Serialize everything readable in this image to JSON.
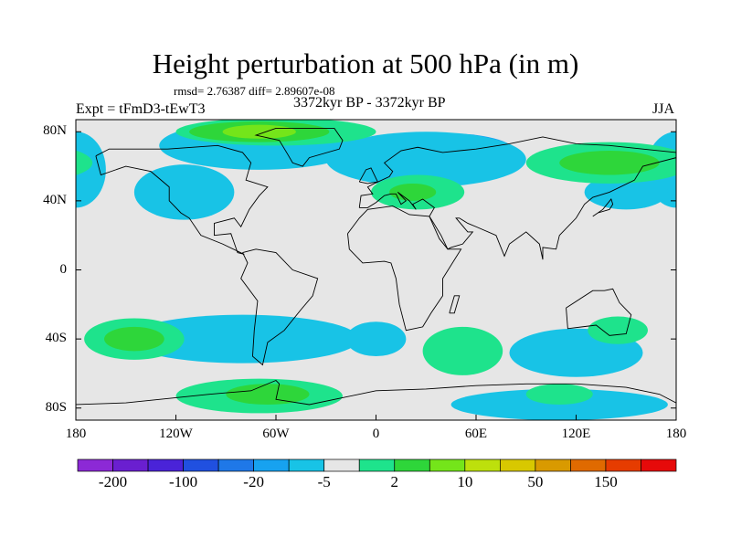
{
  "title": "Height perturbation at 500 hPa (in m)",
  "stats": "rmsd= 2.76387 diff= 2.89607e-08",
  "experiment": "Expt = tFmD3-tEwT3",
  "period": "3372kyr BP - 3372kyr BP",
  "season": "JJA",
  "lat_labels": [
    {
      "label": "80N",
      "lat": 80
    },
    {
      "label": "40N",
      "lat": 40
    },
    {
      "label": "0",
      "lat": 0
    },
    {
      "label": "40S",
      "lat": -40
    },
    {
      "label": "80S",
      "lat": -80
    }
  ],
  "lon_labels": [
    {
      "label": "180",
      "lon": -180
    },
    {
      "label": "120W",
      "lon": -120
    },
    {
      "label": "60W",
      "lon": -60
    },
    {
      "label": "0",
      "lon": 0
    },
    {
      "label": "60E",
      "lon": 60
    },
    {
      "label": "120E",
      "lon": 120
    },
    {
      "label": "180",
      "lon": 180
    }
  ],
  "colorbar": {
    "colors": [
      "#8c29d6",
      "#6a1fd0",
      "#4a23d8",
      "#2050e0",
      "#1f78e8",
      "#17a2f0",
      "#18c3e6",
      "#e6e6e6",
      "#1ee38c",
      "#2ed63a",
      "#74e51a",
      "#bde00c",
      "#d8c800",
      "#d99a00",
      "#e06a00",
      "#e63c00",
      "#e60a0a"
    ],
    "labels": [
      {
        "text": "-200",
        "boundary": 1
      },
      {
        "text": "-100",
        "boundary": 3
      },
      {
        "text": "-20",
        "boundary": 5
      },
      {
        "text": "-5",
        "boundary": 7
      },
      {
        "text": "2",
        "boundary": 9
      },
      {
        "text": "10",
        "boundary": 11
      },
      {
        "text": "50",
        "boundary": 13
      },
      {
        "text": "150",
        "boundary": 15
      }
    ]
  },
  "fields": [
    {
      "color": "#18c3e6",
      "name": "north-atlantic-negative",
      "lon": -70,
      "lat": 72,
      "rlon": 60,
      "rlat": 14
    },
    {
      "color": "#18c3e6",
      "name": "north-pacific-west-negative",
      "lon": -180,
      "lat": 58,
      "rlon": 18,
      "rlat": 22
    },
    {
      "color": "#18c3e6",
      "name": "north-pacific-east-negative",
      "lon": -115,
      "lat": 45,
      "rlon": 30,
      "rlat": 16
    },
    {
      "color": "#17a2f0",
      "name": "arctic-russia-negative",
      "lon": 45,
      "lat": 67,
      "rlon": 40,
      "rlat": 12
    },
    {
      "color": "#18c3e6",
      "name": "arctic-russia-halo",
      "lon": 30,
      "lat": 64,
      "rlon": 60,
      "rlat": 16
    },
    {
      "color": "#18c3e6",
      "name": "east-asia-negative",
      "lon": 150,
      "lat": 45,
      "rlon": 25,
      "rlat": 10
    },
    {
      "color": "#1ee38c",
      "name": "greenland-positive",
      "lon": -60,
      "lat": 80,
      "rlon": 60,
      "rlat": 8
    },
    {
      "color": "#2ed63a",
      "name": "greenland-core",
      "lon": -70,
      "lat": 80,
      "rlon": 42,
      "rlat": 6
    },
    {
      "color": "#74e51a",
      "name": "greenland-peak",
      "lon": -70,
      "lat": 80,
      "rlon": 22,
      "rlat": 4
    },
    {
      "color": "#1ee38c",
      "name": "europe-positive",
      "lon": 25,
      "lat": 45,
      "rlon": 28,
      "rlat": 10
    },
    {
      "color": "#2ed63a",
      "name": "europe-core",
      "lon": 22,
      "lat": 45,
      "rlon": 14,
      "rlat": 5
    },
    {
      "color": "#1ee38c",
      "name": "central-asia-positive",
      "lon": 140,
      "lat": 62,
      "rlon": 50,
      "rlat": 12
    },
    {
      "color": "#2ed63a",
      "name": "central-asia-core",
      "lon": 140,
      "lat": 62,
      "rlon": 30,
      "rlat": 7
    },
    {
      "color": "#18c3e6",
      "name": "south-pacific-negative",
      "lon": -80,
      "lat": -40,
      "rlon": 70,
      "rlat": 14
    },
    {
      "color": "#1ee38c",
      "name": "south-pacific-positive",
      "lon": -145,
      "lat": -40,
      "rlon": 30,
      "rlat": 12
    },
    {
      "color": "#2ed63a",
      "name": "south-pacific-core",
      "lon": -145,
      "lat": -40,
      "rlon": 18,
      "rlat": 7
    },
    {
      "color": "#18c3e6",
      "name": "south-atlantic-negative",
      "lon": 0,
      "lat": -40,
      "rlon": 18,
      "rlat": 10
    },
    {
      "color": "#1ee38c",
      "name": "south-indian-positive",
      "lon": 52,
      "lat": -47,
      "rlon": 24,
      "rlat": 14
    },
    {
      "color": "#18c3e6",
      "name": "australia-negative",
      "lon": 120,
      "lat": -48,
      "rlon": 40,
      "rlat": 14
    },
    {
      "color": "#1ee38c",
      "name": "australia-positive",
      "lon": 145,
      "lat": -35,
      "rlon": 18,
      "rlat": 8
    },
    {
      "color": "#1ee38c",
      "name": "antarctic-west-positive",
      "lon": -70,
      "lat": -73,
      "rlon": 50,
      "rlat": 10
    },
    {
      "color": "#2ed63a",
      "name": "antarctic-west-core",
      "lon": -65,
      "lat": -72,
      "rlon": 25,
      "rlat": 6
    },
    {
      "color": "#18c3e6",
      "name": "antarctic-east-negative",
      "lon": 110,
      "lat": -78,
      "rlon": 65,
      "rlat": 9
    },
    {
      "color": "#1ee38c",
      "name": "antarctic-east-positive",
      "lon": 110,
      "lat": -72,
      "rlon": 20,
      "rlat": 6
    }
  ],
  "coastlines": [
    [
      [
        -168,
        66
      ],
      [
        -160,
        70
      ],
      [
        -140,
        70
      ],
      [
        -125,
        70
      ],
      [
        -95,
        72
      ],
      [
        -80,
        68
      ],
      [
        -75,
        62
      ],
      [
        -78,
        52
      ],
      [
        -65,
        48
      ],
      [
        -70,
        43
      ],
      [
        -76,
        35
      ],
      [
        -81,
        25
      ],
      [
        -85,
        30
      ],
      [
        -97,
        27
      ],
      [
        -97,
        20
      ],
      [
        -87,
        21
      ],
      [
        -83,
        10
      ],
      [
        -79,
        9
      ],
      [
        -92,
        15
      ],
      [
        -105,
        20
      ],
      [
        -112,
        30
      ],
      [
        -117,
        33
      ],
      [
        -124,
        40
      ],
      [
        -124,
        48
      ],
      [
        -135,
        57
      ],
      [
        -150,
        60
      ],
      [
        -165,
        55
      ],
      [
        -168,
        66
      ]
    ],
    [
      [
        -50,
        82
      ],
      [
        -25,
        82
      ],
      [
        -20,
        75
      ],
      [
        -22,
        70
      ],
      [
        -40,
        65
      ],
      [
        -44,
        60
      ],
      [
        -50,
        62
      ],
      [
        -53,
        67
      ],
      [
        -58,
        75
      ],
      [
        -72,
        78
      ],
      [
        -60,
        82
      ],
      [
        -50,
        82
      ]
    ],
    [
      [
        -80,
        10
      ],
      [
        -72,
        12
      ],
      [
        -60,
        10
      ],
      [
        -50,
        0
      ],
      [
        -35,
        -5
      ],
      [
        -38,
        -15
      ],
      [
        -45,
        -23
      ],
      [
        -55,
        -35
      ],
      [
        -65,
        -42
      ],
      [
        -68,
        -55
      ],
      [
        -74,
        -50
      ],
      [
        -73,
        -35
      ],
      [
        -71,
        -18
      ],
      [
        -81,
        -5
      ],
      [
        -77,
        4
      ],
      [
        -80,
        10
      ]
    ],
    [
      [
        -10,
        36
      ],
      [
        -9,
        43
      ],
      [
        -2,
        44
      ],
      [
        -5,
        48
      ],
      [
        -1,
        50
      ],
      [
        8,
        54
      ],
      [
        10,
        57
      ],
      [
        5,
        62
      ],
      [
        15,
        69
      ],
      [
        25,
        71
      ],
      [
        40,
        68
      ],
      [
        60,
        70
      ],
      [
        80,
        73
      ],
      [
        100,
        77
      ],
      [
        120,
        73
      ],
      [
        140,
        72
      ],
      [
        160,
        70
      ],
      [
        180,
        68
      ],
      [
        180,
        65
      ],
      [
        160,
        60
      ],
      [
        155,
        52
      ],
      [
        140,
        45
      ],
      [
        130,
        42
      ],
      [
        125,
        38
      ],
      [
        120,
        30
      ],
      [
        110,
        20
      ],
      [
        108,
        12
      ],
      [
        100,
        13
      ],
      [
        100,
        6
      ],
      [
        98,
        15
      ],
      [
        90,
        22
      ],
      [
        80,
        15
      ],
      [
        77,
        8
      ],
      [
        72,
        20
      ],
      [
        60,
        25
      ],
      [
        55,
        27
      ],
      [
        50,
        30
      ],
      [
        48,
        30
      ],
      [
        55,
        22
      ],
      [
        58,
        22
      ],
      [
        52,
        15
      ],
      [
        45,
        13
      ],
      [
        43,
        12
      ],
      [
        39,
        20
      ],
      [
        34,
        28
      ],
      [
        32,
        31
      ],
      [
        35,
        36
      ],
      [
        28,
        41
      ],
      [
        26,
        40
      ],
      [
        22,
        38
      ],
      [
        24,
        35
      ],
      [
        20,
        40
      ],
      [
        13,
        45
      ],
      [
        18,
        40
      ],
      [
        15,
        38
      ],
      [
        12,
        44
      ],
      [
        9,
        44
      ],
      [
        5,
        43
      ],
      [
        0,
        39
      ],
      [
        -5,
        36
      ],
      [
        -10,
        36
      ]
    ],
    [
      [
        -17,
        21
      ],
      [
        -16,
        12
      ],
      [
        -8,
        4
      ],
      [
        5,
        5
      ],
      [
        9,
        4
      ],
      [
        12,
        -5
      ],
      [
        14,
        -20
      ],
      [
        18,
        -35
      ],
      [
        28,
        -33
      ],
      [
        33,
        -25
      ],
      [
        40,
        -15
      ],
      [
        40,
        -5
      ],
      [
        51,
        12
      ],
      [
        43,
        12
      ],
      [
        38,
        18
      ],
      [
        32,
        31
      ],
      [
        20,
        32
      ],
      [
        10,
        37
      ],
      [
        -5,
        35
      ],
      [
        -10,
        30
      ],
      [
        -17,
        21
      ]
    ],
    [
      [
        114,
        -22
      ],
      [
        130,
        -12
      ],
      [
        137,
        -12
      ],
      [
        142,
        -11
      ],
      [
        146,
        -19
      ],
      [
        153,
        -26
      ],
      [
        150,
        -37
      ],
      [
        140,
        -38
      ],
      [
        132,
        -32
      ],
      [
        115,
        -34
      ],
      [
        114,
        -22
      ]
    ],
    [
      [
        -180,
        -78
      ],
      [
        -150,
        -77
      ],
      [
        -120,
        -74
      ],
      [
        -100,
        -72
      ],
      [
        -75,
        -70
      ],
      [
        -60,
        -64
      ],
      [
        -58,
        -66
      ],
      [
        -60,
        -75
      ],
      [
        -40,
        -78
      ],
      [
        -20,
        -74
      ],
      [
        0,
        -70
      ],
      [
        30,
        -69
      ],
      [
        60,
        -67
      ],
      [
        90,
        -66
      ],
      [
        120,
        -66
      ],
      [
        150,
        -68
      ],
      [
        170,
        -72
      ],
      [
        180,
        -77
      ]
    ],
    [
      [
        -10,
        51
      ],
      [
        -6,
        58
      ],
      [
        -3,
        59
      ],
      [
        0,
        53
      ],
      [
        1,
        51
      ],
      [
        -5,
        50
      ],
      [
        -10,
        51
      ]
    ],
    [
      [
        130,
        31
      ],
      [
        136,
        35
      ],
      [
        141,
        41
      ],
      [
        142,
        38
      ],
      [
        140,
        35
      ],
      [
        133,
        33
      ],
      [
        130,
        31
      ]
    ],
    [
      [
        44,
        -25
      ],
      [
        47,
        -15
      ],
      [
        50,
        -15
      ],
      [
        47,
        -25
      ],
      [
        44,
        -25
      ]
    ]
  ]
}
